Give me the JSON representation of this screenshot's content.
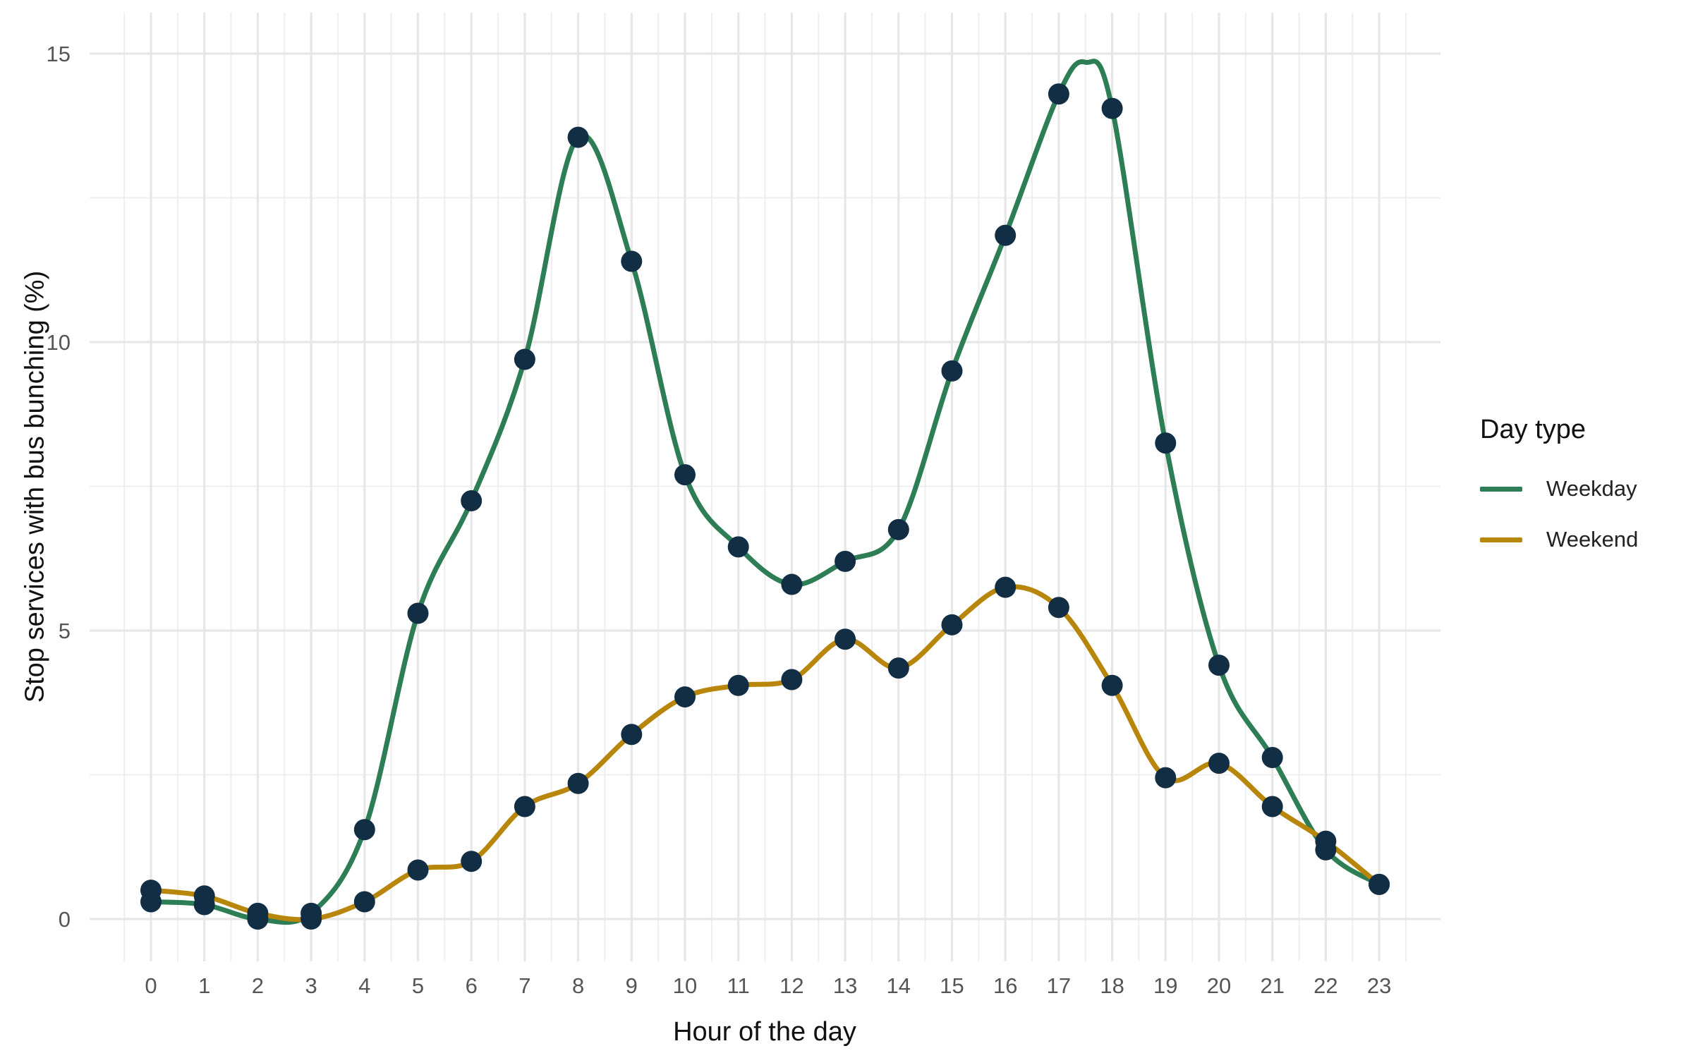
{
  "chart_data": {
    "type": "line",
    "title": "",
    "xlabel": "Hour of the day",
    "ylabel": "Stop services with bus bunching (%)",
    "x": [
      0,
      1,
      2,
      3,
      4,
      5,
      6,
      7,
      8,
      9,
      10,
      11,
      12,
      13,
      14,
      15,
      16,
      17,
      18,
      19,
      20,
      21,
      22,
      23
    ],
    "x_tick_labels": [
      "0",
      "1",
      "2",
      "3",
      "4",
      "5",
      "6",
      "7",
      "8",
      "9",
      "10",
      "11",
      "12",
      "13",
      "14",
      "15",
      "16",
      "17",
      "18",
      "19",
      "20",
      "21",
      "22",
      "23"
    ],
    "yticks": [
      0,
      5,
      10,
      15
    ],
    "y_tick_labels": [
      "0",
      "5",
      "10",
      "15"
    ],
    "yticks_minor": [
      2.5,
      7.5,
      12.5
    ],
    "ylim": [
      -0.73,
      15.7
    ],
    "xlim": [
      -1.15,
      24.15
    ],
    "grid": "major+minor, light gray on white",
    "legend_position": "right",
    "point_color": "#112e45",
    "series": [
      {
        "name": "Weekday",
        "color": "#2d7d55",
        "values": [
          0.3,
          0.25,
          0.0,
          0.1,
          1.55,
          5.3,
          7.25,
          9.7,
          13.55,
          11.4,
          7.7,
          6.45,
          5.8,
          6.2,
          6.75,
          9.5,
          11.85,
          14.3,
          14.05,
          8.25,
          4.4,
          2.8,
          1.2,
          0.6
        ],
        "smooth_peak_hint": {
          "x": 17.5,
          "y": 14.85
        }
      },
      {
        "name": "Weekend",
        "color": "#b8860b",
        "values": [
          0.5,
          0.4,
          0.1,
          0.0,
          0.3,
          0.85,
          1.0,
          1.95,
          2.35,
          3.2,
          3.85,
          4.05,
          4.15,
          4.85,
          4.35,
          5.1,
          5.75,
          5.4,
          4.05,
          2.45,
          2.7,
          1.95,
          1.35,
          0.6
        ]
      }
    ]
  },
  "axes": {
    "x_title": "Hour of the day",
    "y_title": "Stop services with bus bunching (%)"
  },
  "legend": {
    "title": "Day type",
    "items": [
      {
        "label": "Weekday",
        "color": "#2d7d55"
      },
      {
        "label": "Weekend",
        "color": "#b8860b"
      }
    ]
  },
  "colors": {
    "grid_major": "#e7e7e7",
    "grid_minor": "#ededed",
    "tick_text": "#555555",
    "title_text": "#111111",
    "background": "#ffffff"
  }
}
